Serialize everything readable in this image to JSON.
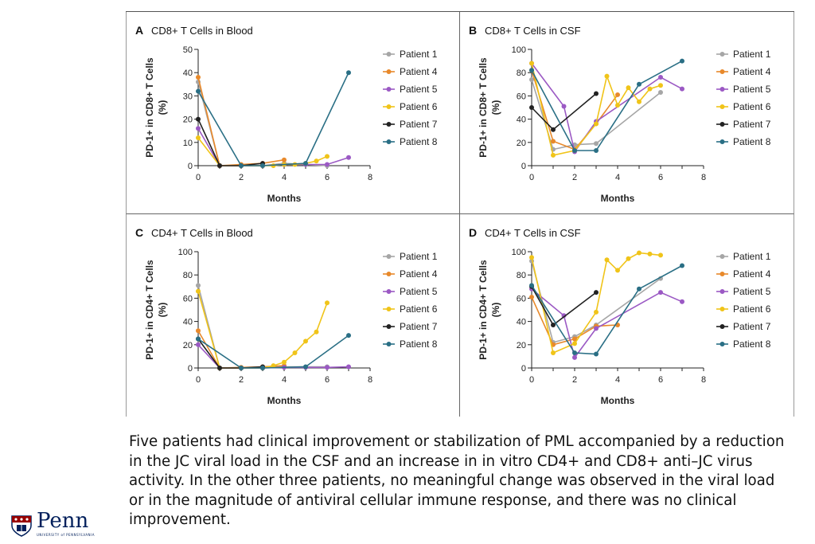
{
  "chart_data": [
    {
      "type": "line",
      "letter": "A",
      "title": "CD8+ T Cells in Blood",
      "xlabel": "Months",
      "ylabel_line1": "PD-1+ in CD8+ T Cells",
      "ylabel_line2": "(%)",
      "xlim": [
        0,
        8
      ],
      "ylim": [
        0,
        50
      ],
      "xticks": [
        "0",
        "2",
        "4",
        "6",
        "8"
      ],
      "yticks": [
        "0",
        "10",
        "20",
        "30",
        "40",
        "50"
      ],
      "series": [
        {
          "name": "Patient 1",
          "color": "#a6a6a6",
          "x": [
            0,
            1,
            2,
            3,
            4,
            6
          ],
          "y": [
            36,
            0,
            0,
            0,
            1,
            0
          ]
        },
        {
          "name": "Patient 4",
          "color": "#e8892b",
          "x": [
            0,
            1,
            2,
            3,
            4
          ],
          "y": [
            38,
            0,
            0.5,
            1,
            2.5
          ]
        },
        {
          "name": "Patient 5",
          "color": "#9b59c4",
          "x": [
            0,
            1,
            2,
            3,
            4,
            5,
            6,
            7
          ],
          "y": [
            16,
            0,
            0,
            0,
            0.5,
            0.5,
            0.5,
            3.5
          ]
        },
        {
          "name": "Patient 6",
          "color": "#f0c419",
          "x": [
            0,
            1,
            2,
            3,
            3.5,
            4,
            4.5,
            5,
            5.5,
            6
          ],
          "y": [
            12,
            0,
            0,
            0,
            0,
            0.5,
            0.5,
            1,
            2,
            4
          ]
        },
        {
          "name": "Patient 7",
          "color": "#222222",
          "x": [
            0,
            1,
            2,
            3
          ],
          "y": [
            20,
            0,
            0,
            1
          ]
        },
        {
          "name": "Patient 8",
          "color": "#2a6f85",
          "x": [
            0,
            2,
            3,
            5,
            7
          ],
          "y": [
            32,
            0,
            0,
            1,
            40
          ]
        }
      ]
    },
    {
      "type": "line",
      "letter": "B",
      "title": "CD8+ T Cells in CSF",
      "xlabel": "Months",
      "ylabel_line1": "PD-1+ in CD8+ T Cells",
      "ylabel_line2": "(%)",
      "xlim": [
        0,
        8
      ],
      "ylim": [
        0,
        100
      ],
      "xticks": [
        "0",
        "2",
        "4",
        "6",
        "8"
      ],
      "yticks": [
        "0",
        "20",
        "40",
        "60",
        "80",
        "100"
      ],
      "series": [
        {
          "name": "Patient 1",
          "color": "#a6a6a6",
          "x": [
            0,
            1,
            2,
            3,
            6
          ],
          "y": [
            74,
            14,
            18,
            19,
            63
          ]
        },
        {
          "name": "Patient 4",
          "color": "#e8892b",
          "x": [
            0,
            1,
            2,
            3,
            4
          ],
          "y": [
            82,
            21,
            14,
            36,
            61
          ]
        },
        {
          "name": "Patient 5",
          "color": "#9b59c4",
          "x": [
            0,
            1.5,
            2,
            3,
            6,
            7
          ],
          "y": [
            88,
            51,
            12,
            38,
            76,
            66
          ]
        },
        {
          "name": "Patient 6",
          "color": "#f0c419",
          "x": [
            0,
            1,
            2,
            3,
            3.5,
            4,
            4.5,
            5,
            5.5,
            6
          ],
          "y": [
            88,
            9,
            13,
            36,
            77,
            52,
            67,
            55,
            66,
            69
          ]
        },
        {
          "name": "Patient 7",
          "color": "#222222",
          "x": [
            0,
            1,
            3
          ],
          "y": [
            50,
            31,
            62
          ]
        },
        {
          "name": "Patient 8",
          "color": "#2a6f85",
          "x": [
            0,
            2,
            3,
            5,
            7
          ],
          "y": [
            82,
            13,
            13,
            70,
            90
          ]
        }
      ]
    },
    {
      "type": "line",
      "letter": "C",
      "title": "CD4+ T Cells in Blood",
      "xlabel": "Months",
      "ylabel_line1": "PD-1+ in CD4+ T Cells",
      "ylabel_line2": "(%)",
      "xlim": [
        0,
        8
      ],
      "ylim": [
        0,
        100
      ],
      "xticks": [
        "0",
        "2",
        "4",
        "6",
        "8"
      ],
      "yticks": [
        "0",
        "20",
        "40",
        "60",
        "80",
        "100"
      ],
      "series": [
        {
          "name": "Patient 1",
          "color": "#a6a6a6",
          "x": [
            0,
            1,
            2,
            3,
            4,
            6
          ],
          "y": [
            71,
            0,
            0,
            0,
            1,
            1
          ]
        },
        {
          "name": "Patient 4",
          "color": "#e8892b",
          "x": [
            0,
            1,
            2,
            3,
            4
          ],
          "y": [
            32,
            0,
            0.5,
            1,
            2
          ]
        },
        {
          "name": "Patient 5",
          "color": "#9b59c4",
          "x": [
            0,
            1,
            2,
            3,
            4,
            5,
            6,
            7
          ],
          "y": [
            20,
            0,
            0,
            0,
            0.5,
            0.5,
            0.5,
            1
          ]
        },
        {
          "name": "Patient 6",
          "color": "#f0c419",
          "x": [
            0,
            1,
            2,
            3,
            3.5,
            4,
            4.5,
            5,
            5.5,
            6
          ],
          "y": [
            66,
            0,
            0,
            0,
            2,
            5,
            13,
            23,
            31,
            56
          ]
        },
        {
          "name": "Patient 7",
          "color": "#222222",
          "x": [
            0,
            1,
            2,
            3
          ],
          "y": [
            25,
            0,
            0,
            1
          ]
        },
        {
          "name": "Patient 8",
          "color": "#2a6f85",
          "x": [
            0,
            2,
            3,
            5,
            7
          ],
          "y": [
            25,
            0,
            0,
            1,
            28
          ]
        }
      ]
    },
    {
      "type": "line",
      "letter": "D",
      "title": "CD4+ T Cells in CSF",
      "xlabel": "Months",
      "ylabel_line1": "PD-1+ in CD4+ T Cells",
      "ylabel_line2": "(%)",
      "xlim": [
        0,
        8
      ],
      "ylim": [
        0,
        100
      ],
      "xticks": [
        "0",
        "2",
        "4",
        "6",
        "8"
      ],
      "yticks": [
        "0",
        "20",
        "40",
        "60",
        "80",
        "100"
      ],
      "series": [
        {
          "name": "Patient 1",
          "color": "#a6a6a6",
          "x": [
            0,
            1,
            2,
            3,
            6
          ],
          "y": [
            92,
            22,
            27,
            37,
            77
          ]
        },
        {
          "name": "Patient 4",
          "color": "#e8892b",
          "x": [
            0,
            1,
            2,
            3,
            4
          ],
          "y": [
            61,
            20,
            25,
            36,
            37
          ]
        },
        {
          "name": "Patient 5",
          "color": "#9b59c4",
          "x": [
            0,
            1.5,
            2,
            3,
            6,
            7
          ],
          "y": [
            68,
            45,
            9,
            34,
            65,
            57
          ]
        },
        {
          "name": "Patient 6",
          "color": "#f0c419",
          "x": [
            0,
            1,
            2,
            3,
            3.5,
            4,
            4.5,
            5,
            5.5,
            6
          ],
          "y": [
            95,
            13,
            21,
            48,
            93,
            84,
            94,
            99,
            98,
            97
          ]
        },
        {
          "name": "Patient 7",
          "color": "#222222",
          "x": [
            0,
            1,
            3
          ],
          "y": [
            70,
            37,
            65
          ]
        },
        {
          "name": "Patient 8",
          "color": "#2a6f85",
          "x": [
            0,
            2,
            3,
            5,
            7
          ],
          "y": [
            71,
            13,
            12,
            68,
            88
          ]
        }
      ]
    }
  ],
  "caption": "Five patients had clinical improvement or stabilization of PML accompanied by a reduction in the JC viral load in the CSF and an increase in in vitro CD4+ and CD8+ anti–JC virus activity. In the other three patients, no meaningful change was observed in the viral load or in the magnitude of antiviral cellular immune response, and there was no clinical improvement.",
  "logo": {
    "word": "Penn",
    "subtitle": "UNIVERSITY of PENNSYLVANIA",
    "color": "#011f5b"
  }
}
